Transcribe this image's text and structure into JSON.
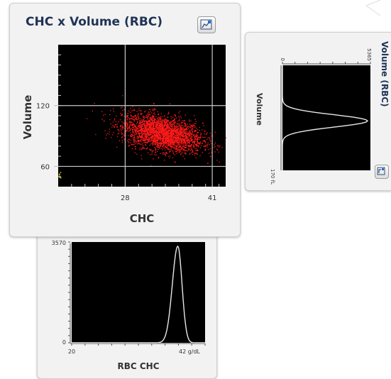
{
  "colors": {
    "plot_bg": "#000000",
    "scatter_points": "#ff1a1a",
    "grid_lines": "#c8c8c8",
    "curve": "#e8e8e8",
    "title": "#1f3355",
    "panel_bg": "#f2f2f2"
  },
  "icons": {
    "expand": "chart-expand-icon"
  },
  "chart_data": [
    {
      "type": "scatter",
      "title": "CHC x Volume (RBC)",
      "xlabel": "CHC",
      "ylabel": "Volume",
      "x_ticks": [
        "28",
        "41"
      ],
      "y_ticks": [
        "120",
        "60"
      ],
      "xlim": [
        18,
        43
      ],
      "ylim": [
        40,
        180
      ],
      "grid": {
        "x": [
          28,
          41
        ],
        "y": [
          60,
          120
        ]
      },
      "point_cloud": {
        "center": [
          33.5,
          93
        ],
        "spread": [
          3.0,
          10
        ],
        "count": 3000,
        "color": "#ff1a1a"
      }
    },
    {
      "type": "line",
      "title": "Volume (RBC)",
      "orientation": "vertical",
      "axis_label": "Volume",
      "tick_labels": [
        "0",
        "5365",
        "170 fL"
      ],
      "peak": {
        "x": 90,
        "value": 5365
      },
      "xlim": [
        0,
        170
      ]
    },
    {
      "type": "line",
      "title": "",
      "xlabel": "RBC CHC",
      "y_ticks": [
        "3570",
        "0"
      ],
      "x_ticks": [
        "20",
        "42 g/dL"
      ],
      "xlim": [
        20,
        42
      ],
      "ylim": [
        0,
        3570
      ],
      "peak": {
        "x": 37.5,
        "value": 3570
      }
    }
  ]
}
